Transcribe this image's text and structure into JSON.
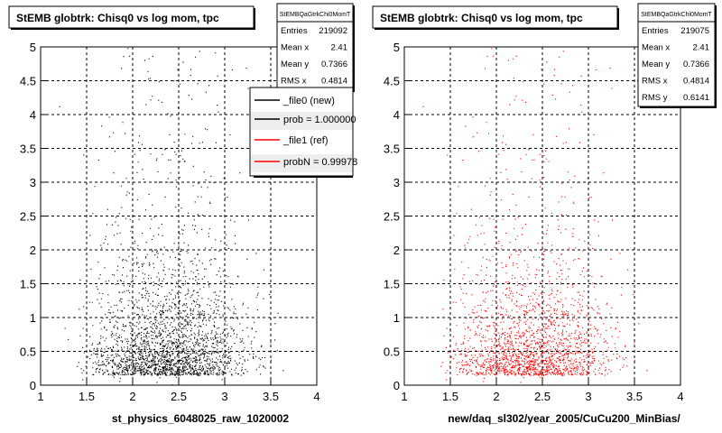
{
  "chart_data": [
    {
      "type": "scatter",
      "title": "StEMB globtrk: Chisq0 vs log mom, tpc",
      "xlabel": "st_physics_6048025_raw_1020002",
      "ylabel": "",
      "xlim": [
        1,
        4
      ],
      "ylim": [
        0,
        5
      ],
      "x_ticks": [
        "1",
        "1.5",
        "2",
        "2.5",
        "3",
        "3.5",
        "4"
      ],
      "y_ticks": [
        "0",
        "0.5",
        "1",
        "1.5",
        "2",
        "2.5",
        "3",
        "3.5",
        "4",
        "4.5",
        "5"
      ],
      "grid": true,
      "color": "#000000",
      "stats": {
        "name": "StEMBQaGtrkChi0MomT",
        "entries_label": "Entries",
        "entries": "219092",
        "mean_x_label": "Mean x",
        "mean_x": "2.41",
        "mean_y_label": "Mean y",
        "mean_y": "0.7366",
        "rms_x_label": "RMS x",
        "rms_x": "0.4814"
      },
      "legend": {
        "placement": "top-right",
        "entries": [
          {
            "label": "_file0 (new)",
            "color": "#000000"
          },
          {
            "label": "prob = 1.000000",
            "color": "#000000"
          },
          {
            "label": "_file1 (ref)",
            "color": "#ff0000"
          },
          {
            "label": "probN = 0.99978",
            "color": "#ff0000"
          }
        ]
      }
    },
    {
      "type": "scatter",
      "title": "StEMB globtrk: Chisq0 vs log mom, tpc",
      "xlabel": "new/daq_sl302/year_2005/CuCu200_MinBias/",
      "ylabel": "",
      "xlim": [
        1,
        4
      ],
      "ylim": [
        0,
        5
      ],
      "x_ticks": [
        "1",
        "1.5",
        "2",
        "2.5",
        "3",
        "3.5",
        "4"
      ],
      "y_ticks": [
        "0",
        "0.5",
        "1",
        "1.5",
        "2",
        "2.5",
        "3",
        "3.5",
        "4",
        "4.5",
        "5"
      ],
      "grid": true,
      "color": "#ff0000",
      "stats": {
        "name": "StEMBQaGtrkChi0MomT",
        "entries_label": "Entries",
        "entries": "219075",
        "mean_x_label": "Mean x",
        "mean_x": "2.41",
        "mean_y_label": "Mean y",
        "mean_y": "0.7366",
        "rms_x_label": "RMS x",
        "rms_x": "0.4814",
        "rms_y_label": "RMS y",
        "rms_y": "0.6141"
      }
    }
  ]
}
